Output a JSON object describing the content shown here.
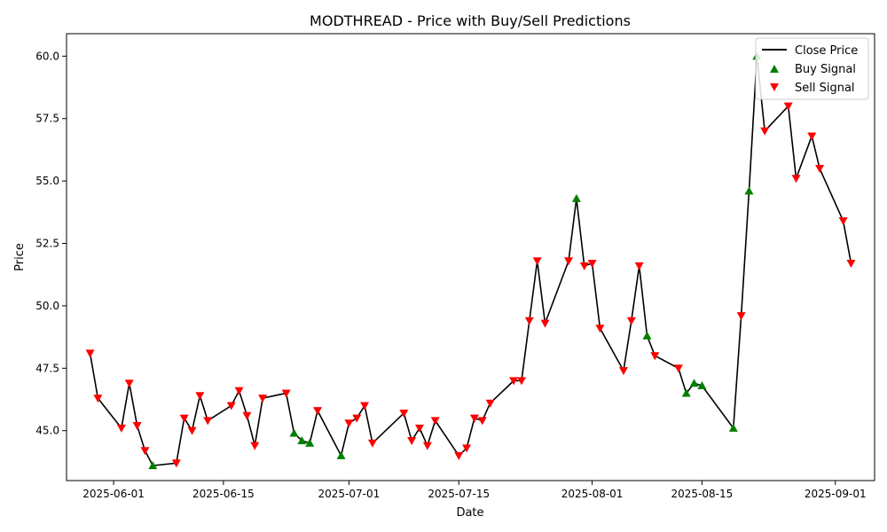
{
  "chart_data": {
    "type": "line",
    "title": "MODTHREAD - Price with Buy/Sell Predictions",
    "xlabel": "Date",
    "ylabel": "Price",
    "x_axis": "date",
    "x_ticks": [
      "2025-06-01",
      "2025-06-15",
      "2025-07-01",
      "2025-07-15",
      "2025-08-01",
      "2025-08-15",
      "2025-09-01"
    ],
    "y_ticks": [
      45.0,
      47.5,
      50.0,
      52.5,
      55.0,
      57.5,
      60.0
    ],
    "y_tick_labels": [
      "45.0",
      "47.5",
      "50.0",
      "52.5",
      "55.0",
      "57.5",
      "60.0"
    ],
    "xlim": [
      "2025-05-26",
      "2025-09-06"
    ],
    "ylim": [
      43.0,
      60.9
    ],
    "grid": false,
    "legend_position": "top-right",
    "legend": [
      "Close Price",
      "Buy Signal",
      "Sell Signal"
    ],
    "colors": {
      "line": "#000000",
      "buy": "#008000",
      "sell": "#ff0000"
    },
    "series": [
      {
        "name": "Close Price",
        "points": [
          [
            "2025-05-29",
            48.1
          ],
          [
            "2025-05-30",
            46.3
          ],
          [
            "2025-06-02",
            45.1
          ],
          [
            "2025-06-03",
            46.9
          ],
          [
            "2025-06-04",
            45.2
          ],
          [
            "2025-06-05",
            44.2
          ],
          [
            "2025-06-06",
            43.6
          ],
          [
            "2025-06-09",
            43.7
          ],
          [
            "2025-06-10",
            45.5
          ],
          [
            "2025-06-11",
            45.0
          ],
          [
            "2025-06-12",
            46.4
          ],
          [
            "2025-06-13",
            45.4
          ],
          [
            "2025-06-16",
            46.0
          ],
          [
            "2025-06-17",
            46.6
          ],
          [
            "2025-06-18",
            45.6
          ],
          [
            "2025-06-19",
            44.4
          ],
          [
            "2025-06-20",
            46.3
          ],
          [
            "2025-06-23",
            46.5
          ],
          [
            "2025-06-24",
            44.9
          ],
          [
            "2025-06-25",
            44.6
          ],
          [
            "2025-06-26",
            44.5
          ],
          [
            "2025-06-27",
            45.8
          ],
          [
            "2025-06-30",
            44.0
          ],
          [
            "2025-07-01",
            45.3
          ],
          [
            "2025-07-02",
            45.5
          ],
          [
            "2025-07-03",
            46.0
          ],
          [
            "2025-07-04",
            44.5
          ],
          [
            "2025-07-08",
            45.7
          ],
          [
            "2025-07-09",
            44.6
          ],
          [
            "2025-07-10",
            45.1
          ],
          [
            "2025-07-11",
            44.4
          ],
          [
            "2025-07-12",
            45.4
          ],
          [
            "2025-07-15",
            44.0
          ],
          [
            "2025-07-16",
            44.3
          ],
          [
            "2025-07-17",
            45.5
          ],
          [
            "2025-07-18",
            45.4
          ],
          [
            "2025-07-19",
            46.1
          ],
          [
            "2025-07-22",
            47.0
          ],
          [
            "2025-07-23",
            47.0
          ],
          [
            "2025-07-24",
            49.4
          ],
          [
            "2025-07-25",
            51.8
          ],
          [
            "2025-07-26",
            49.3
          ],
          [
            "2025-07-29",
            51.8
          ],
          [
            "2025-07-30",
            54.3
          ],
          [
            "2025-07-31",
            51.6
          ],
          [
            "2025-08-01",
            51.7
          ],
          [
            "2025-08-02",
            49.1
          ],
          [
            "2025-08-05",
            47.4
          ],
          [
            "2025-08-06",
            49.4
          ],
          [
            "2025-08-07",
            51.6
          ],
          [
            "2025-08-08",
            48.8
          ],
          [
            "2025-08-09",
            48.0
          ],
          [
            "2025-08-12",
            47.5
          ],
          [
            "2025-08-13",
            46.5
          ],
          [
            "2025-08-14",
            46.9
          ],
          [
            "2025-08-15",
            46.8
          ],
          [
            "2025-08-19",
            45.1
          ],
          [
            "2025-08-20",
            49.6
          ],
          [
            "2025-08-21",
            54.6
          ],
          [
            "2025-08-22",
            60.0
          ],
          [
            "2025-08-23",
            57.0
          ],
          [
            "2025-08-26",
            58.0
          ],
          [
            "2025-08-27",
            55.1
          ],
          [
            "2025-08-29",
            56.8
          ],
          [
            "2025-08-30",
            55.5
          ],
          [
            "2025-09-02",
            53.4
          ],
          [
            "2025-09-03",
            51.7
          ]
        ]
      },
      {
        "name": "Buy Signal",
        "points": [
          [
            "2025-06-06",
            43.6
          ],
          [
            "2025-06-24",
            44.9
          ],
          [
            "2025-06-25",
            44.6
          ],
          [
            "2025-06-26",
            44.5
          ],
          [
            "2025-06-30",
            44.0
          ],
          [
            "2025-07-30",
            54.3
          ],
          [
            "2025-08-08",
            48.8
          ],
          [
            "2025-08-13",
            46.5
          ],
          [
            "2025-08-14",
            46.9
          ],
          [
            "2025-08-15",
            46.8
          ],
          [
            "2025-08-19",
            45.1
          ],
          [
            "2025-08-21",
            54.6
          ],
          [
            "2025-08-22",
            60.0
          ]
        ]
      },
      {
        "name": "Sell Signal",
        "points": [
          [
            "2025-05-29",
            48.1
          ],
          [
            "2025-05-30",
            46.3
          ],
          [
            "2025-06-02",
            45.1
          ],
          [
            "2025-06-03",
            46.9
          ],
          [
            "2025-06-04",
            45.2
          ],
          [
            "2025-06-05",
            44.2
          ],
          [
            "2025-06-09",
            43.7
          ],
          [
            "2025-06-10",
            45.5
          ],
          [
            "2025-06-11",
            45.0
          ],
          [
            "2025-06-12",
            46.4
          ],
          [
            "2025-06-13",
            45.4
          ],
          [
            "2025-06-16",
            46.0
          ],
          [
            "2025-06-17",
            46.6
          ],
          [
            "2025-06-18",
            45.6
          ],
          [
            "2025-06-19",
            44.4
          ],
          [
            "2025-06-20",
            46.3
          ],
          [
            "2025-06-23",
            46.5
          ],
          [
            "2025-06-27",
            45.8
          ],
          [
            "2025-07-01",
            45.3
          ],
          [
            "2025-07-02",
            45.5
          ],
          [
            "2025-07-03",
            46.0
          ],
          [
            "2025-07-04",
            44.5
          ],
          [
            "2025-07-08",
            45.7
          ],
          [
            "2025-07-09",
            44.6
          ],
          [
            "2025-07-10",
            45.1
          ],
          [
            "2025-07-11",
            44.4
          ],
          [
            "2025-07-12",
            45.4
          ],
          [
            "2025-07-15",
            44.0
          ],
          [
            "2025-07-16",
            44.3
          ],
          [
            "2025-07-17",
            45.5
          ],
          [
            "2025-07-18",
            45.4
          ],
          [
            "2025-07-19",
            46.1
          ],
          [
            "2025-07-22",
            47.0
          ],
          [
            "2025-07-23",
            47.0
          ],
          [
            "2025-07-24",
            49.4
          ],
          [
            "2025-07-25",
            51.8
          ],
          [
            "2025-07-26",
            49.3
          ],
          [
            "2025-07-29",
            51.8
          ],
          [
            "2025-07-31",
            51.6
          ],
          [
            "2025-08-01",
            51.7
          ],
          [
            "2025-08-02",
            49.1
          ],
          [
            "2025-08-05",
            47.4
          ],
          [
            "2025-08-06",
            49.4
          ],
          [
            "2025-08-07",
            51.6
          ],
          [
            "2025-08-09",
            48.0
          ],
          [
            "2025-08-12",
            47.5
          ],
          [
            "2025-08-20",
            49.6
          ],
          [
            "2025-08-23",
            57.0
          ],
          [
            "2025-08-26",
            58.0
          ],
          [
            "2025-08-27",
            55.1
          ],
          [
            "2025-08-29",
            56.8
          ],
          [
            "2025-08-30",
            55.5
          ],
          [
            "2025-09-02",
            53.4
          ],
          [
            "2025-09-03",
            51.7
          ]
        ]
      }
    ]
  }
}
